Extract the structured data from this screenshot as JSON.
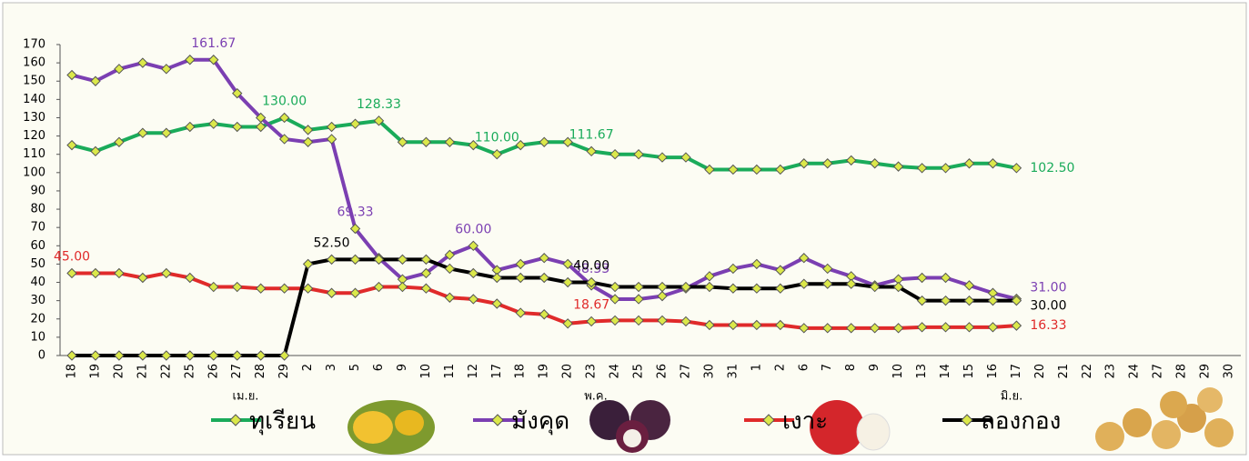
{
  "chart_data": {
    "type": "line",
    "categories": [
      "18",
      "19",
      "20",
      "21",
      "22",
      "25",
      "26",
      "27",
      "28",
      "29",
      "2",
      "3",
      "5",
      "6",
      "9",
      "10",
      "11",
      "12",
      "17",
      "18",
      "19",
      "20",
      "23",
      "24",
      "25",
      "26",
      "27",
      "30",
      "31",
      "1",
      "2",
      "6",
      "7",
      "8",
      "9",
      "10",
      "13",
      "14",
      "15",
      "16",
      "17",
      "20",
      "21",
      "22",
      "23",
      "24",
      "27",
      "28",
      "29",
      "30"
    ],
    "month_labels": [
      "เม.ย.",
      "พ.ค.",
      "มิ.ย."
    ],
    "ylim": [
      0,
      170
    ],
    "yticks": [
      0,
      10,
      20,
      30,
      40,
      50,
      60,
      70,
      80,
      90,
      100,
      110,
      120,
      130,
      140,
      150,
      160,
      170
    ],
    "series": [
      {
        "name": "ทุเรียน",
        "color": "#1aab5a",
        "values": [
          115,
          111.67,
          116.67,
          121.67,
          121.67,
          125,
          126.67,
          125,
          125,
          130,
          123.33,
          125,
          126.67,
          128.33,
          116.67,
          116.67,
          116.67,
          115,
          110,
          115,
          116.67,
          116.67,
          111.67,
          110,
          110,
          108.33,
          108.33,
          101.67,
          101.67,
          101.67,
          101.67,
          105,
          105,
          106.67,
          105,
          103.33,
          102.5,
          102.5,
          105,
          105,
          102.5,
          null,
          null,
          null,
          null,
          null,
          null,
          null,
          null,
          null
        ],
        "value_labels": [
          null,
          null,
          null,
          null,
          null,
          null,
          null,
          null,
          null,
          "130.00",
          null,
          null,
          null,
          "128.33",
          null,
          null,
          null,
          null,
          "110.00",
          null,
          null,
          null,
          "111.67",
          null,
          null,
          null,
          null,
          null,
          null,
          null,
          null,
          null,
          null,
          null,
          null,
          null,
          null,
          null,
          null,
          null,
          "102.50",
          null,
          null,
          null,
          null,
          null,
          null,
          null,
          null,
          null
        ]
      },
      {
        "name": "มังคุด",
        "color": "#7b3fb2",
        "values": [
          153.33,
          150,
          156.67,
          160,
          156.67,
          161.67,
          161.67,
          143.33,
          130,
          118.33,
          116.67,
          118.33,
          69.33,
          53.33,
          41.67,
          45,
          55,
          60,
          46.67,
          50,
          53.33,
          50,
          38.33,
          30.83,
          30.83,
          32.5,
          36.67,
          43.33,
          47.5,
          50,
          46.67,
          53.33,
          47.5,
          43.33,
          38.33,
          41.67,
          42.5,
          42.5,
          38.33,
          34.17,
          31,
          null,
          null,
          null,
          null,
          null,
          null,
          null,
          null,
          null
        ],
        "value_labels": [
          null,
          null,
          null,
          null,
          null,
          null,
          "161.67",
          null,
          null,
          null,
          null,
          null,
          "69.33",
          null,
          null,
          null,
          null,
          "60.00",
          null,
          null,
          null,
          null,
          "38.33",
          null,
          null,
          null,
          null,
          null,
          null,
          null,
          null,
          null,
          null,
          null,
          null,
          null,
          null,
          null,
          null,
          null,
          "31.00",
          null,
          null,
          null,
          null,
          null,
          null,
          null,
          null,
          null
        ]
      },
      {
        "name": "เงาะ",
        "color": "#e02a2a",
        "values": [
          45,
          45,
          45,
          42.5,
          45,
          42.5,
          37.5,
          37.5,
          36.67,
          36.67,
          36.67,
          34.17,
          34.17,
          37.5,
          37.5,
          36.67,
          31.67,
          30.83,
          28.33,
          23.33,
          22.5,
          17.5,
          18.67,
          19.17,
          19.17,
          19.17,
          18.67,
          16.67,
          16.67,
          16.67,
          16.67,
          15,
          15,
          15,
          15,
          15,
          15.5,
          15.5,
          15.5,
          15.5,
          16.33,
          null,
          null,
          null,
          null,
          null,
          null,
          null,
          null,
          null
        ],
        "value_labels": [
          "45.00",
          null,
          null,
          null,
          null,
          null,
          null,
          null,
          null,
          null,
          null,
          null,
          null,
          null,
          null,
          null,
          null,
          null,
          null,
          null,
          null,
          null,
          "18.67",
          null,
          null,
          null,
          null,
          null,
          null,
          null,
          null,
          null,
          null,
          null,
          null,
          null,
          null,
          null,
          null,
          null,
          "16.33",
          null,
          null,
          null,
          null,
          null,
          null,
          null,
          null,
          null
        ]
      },
      {
        "name": "ลองกอง",
        "color": "#000000",
        "values": [
          0,
          0,
          0,
          0,
          0,
          0,
          0,
          0,
          0,
          0,
          50,
          52.5,
          52.5,
          52.5,
          52.5,
          52.5,
          47.5,
          45,
          42.5,
          42.5,
          42.5,
          40,
          40,
          37.5,
          37.5,
          37.5,
          37.5,
          37.5,
          36.67,
          36.67,
          36.67,
          39.17,
          39.17,
          39.17,
          37.5,
          37.5,
          30,
          30,
          30,
          30,
          30,
          null,
          null,
          null,
          null,
          null,
          null,
          null,
          null,
          null
        ],
        "value_labels": [
          null,
          null,
          null,
          null,
          null,
          null,
          null,
          null,
          null,
          null,
          null,
          "52.50",
          null,
          null,
          null,
          null,
          null,
          null,
          null,
          null,
          null,
          null,
          "40.00",
          null,
          null,
          null,
          null,
          null,
          null,
          null,
          null,
          null,
          null,
          null,
          null,
          null,
          null,
          null,
          null,
          null,
          "30.00",
          null,
          null,
          null,
          null,
          null,
          null,
          null,
          null,
          null
        ]
      }
    ]
  }
}
